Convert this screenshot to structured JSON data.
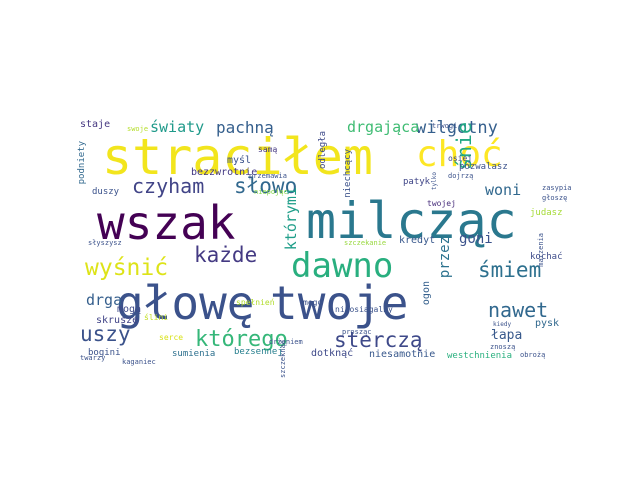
{
  "words": [
    {
      "text": "wszak",
      "color": "#440154"
    },
    {
      "text": "milcząc",
      "color": "#2a788e"
    },
    {
      "text": "głowę",
      "color": "#3b528b"
    },
    {
      "text": "twoje",
      "color": "#3b528b"
    },
    {
      "text": "straciłem",
      "color": "#f2e51d"
    },
    {
      "text": "dawno",
      "color": "#29af7f"
    },
    {
      "text": "choć",
      "color": "#fde725"
    },
    {
      "text": "czyham",
      "color": "#414487"
    },
    {
      "text": "słowo",
      "color": "#31688e"
    },
    {
      "text": "każde",
      "color": "#443a83"
    },
    {
      "text": "wyśnić",
      "color": "#dde318"
    },
    {
      "text": "którego",
      "color": "#35b779"
    },
    {
      "text": "sterczą",
      "color": "#3e4989"
    },
    {
      "text": "śmiem",
      "color": "#2d708e"
    },
    {
      "text": "nawet",
      "color": "#31688e"
    },
    {
      "text": "uszy",
      "color": "#3b528b"
    },
    {
      "text": "drga",
      "color": "#355f8d"
    },
    {
      "text": "woni",
      "color": "#31688e"
    },
    {
      "text": "którymi",
      "color": "#1f9e89"
    },
    {
      "text": "wilgotny",
      "color": "#355f8d"
    },
    {
      "text": "śnie",
      "color": "#22a884"
    },
    {
      "text": "drgająca",
      "color": "#3fbc73"
    },
    {
      "text": "pachną",
      "color": "#355f8d"
    },
    {
      "text": "światy",
      "color": "#1f9a8a"
    },
    {
      "text": "przez",
      "color": "#2c728e"
    },
    {
      "text": "goni",
      "color": "#3b528b"
    },
    {
      "text": "łapa",
      "color": "#38598c"
    },
    {
      "text": "staje",
      "color": "#453781"
    },
    {
      "text": "swoje",
      "color": "#b5de2b"
    },
    {
      "text": "podniety",
      "color": "#31688e"
    },
    {
      "text": "mogą",
      "color": "#3e4a89"
    },
    {
      "text": "skrusze",
      "color": "#404387"
    },
    {
      "text": "bogini",
      "color": "#3b528b"
    },
    {
      "text": "sumienia",
      "color": "#2d708e"
    },
    {
      "text": "bezsennej",
      "color": "#277f8e"
    },
    {
      "text": "dotknąć",
      "color": "#3e4989"
    },
    {
      "text": "niesamotnie",
      "color": "#38588c"
    },
    {
      "text": "westchnienia",
      "color": "#2ab07f"
    },
    {
      "text": "bezzwrotnie",
      "color": "#443983"
    },
    {
      "text": "myśl",
      "color": "#3b528b"
    },
    {
      "text": "samą",
      "color": "#453882"
    },
    {
      "text": "odległa",
      "color": "#3e4a89"
    },
    {
      "text": "niechcący",
      "color": "#3b528b"
    },
    {
      "text": "patyk",
      "color": "#404688"
    },
    {
      "text": "kredyt",
      "color": "#38588c"
    },
    {
      "text": "judasz",
      "color": "#a5db36"
    },
    {
      "text": "kochać",
      "color": "#3e4c8a"
    },
    {
      "text": "pysk",
      "color": "#31688e"
    },
    {
      "text": "ogon",
      "color": "#35608d"
    },
    {
      "text": "pozwalasz",
      "color": "#3b528b"
    },
    {
      "text": "osiej",
      "color": "#3f4788"
    },
    {
      "text": "twojej",
      "color": "#472d7b"
    },
    {
      "text": "serce",
      "color": "#d8e219"
    },
    {
      "text": "duszy",
      "color": "#3b528b"
    },
    {
      "text": "ślini",
      "color": "#c2df23"
    },
    {
      "text": "spełnień",
      "color": "#b2dd2d"
    },
    {
      "text": "mego",
      "color": "#3b528b"
    },
    {
      "text": "niepojąc",
      "color": "#86d549"
    },
    {
      "text": "niaosiągalny",
      "color": "#3b528b"
    },
    {
      "text": "szczekanie",
      "color": "#98d83e"
    },
    {
      "text": "słyszysz",
      "color": "#3b528b"
    },
    {
      "text": "twarzy",
      "color": "#3b528b"
    },
    {
      "text": "kaganiec",
      "color": "#3b528b"
    },
    {
      "text": "drżeniem",
      "color": "#3b528b"
    },
    {
      "text": "znoszą",
      "color": "#3b528b"
    },
    {
      "text": "obrożą",
      "color": "#3b528b"
    },
    {
      "text": "kiedy",
      "color": "#3b528b"
    },
    {
      "text": "dojrzą",
      "color": "#3b528b"
    },
    {
      "text": "głoszę",
      "color": "#3b528b"
    },
    {
      "text": "szczeknąć",
      "color": "#3b528b"
    },
    {
      "text": "prosząc",
      "color": "#3b528b"
    },
    {
      "text": "trwogi",
      "color": "#3b528b"
    },
    {
      "text": "tylko",
      "color": "#3b528b"
    },
    {
      "text": "przemawia",
      "color": "#3b528b"
    },
    {
      "text": "marzenia",
      "color": "#3b528b"
    },
    {
      "text": "zasypia",
      "color": "#3b528b"
    }
  ]
}
